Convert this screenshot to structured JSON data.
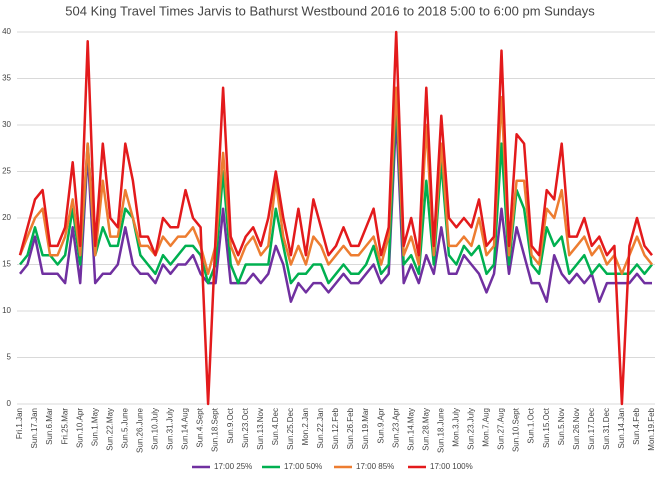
{
  "chart_data": {
    "type": "line",
    "title": "504 King Travel Times Jarvis to Bathurst Westbound 2016 to 2018 5:00 to 6:00 pm Sundays",
    "categories": [
      "Fri.1.Jan",
      null,
      "Sun.17.Jan",
      null,
      "Sun.6.Mar",
      null,
      "Fri.25.Mar",
      null,
      "Sun.10.Apr",
      null,
      "Sun.1.May",
      null,
      "Sun.22.May",
      null,
      "Sun.5.June",
      null,
      "Sun.26.June",
      null,
      "Sun.10.July",
      null,
      "Sun.31.July",
      null,
      "Sun.14.Aug",
      null,
      "Sun.4.Sept",
      null,
      "Sun.18.Sept",
      null,
      "Sun.9.Oct",
      null,
      "Sun.23.Oct",
      null,
      "Sun.13.Nov",
      null,
      "Sun.4.Dec",
      null,
      "Sun.25.Dec",
      null,
      "Mon.2.Jan",
      null,
      "Sun.22.Jan",
      null,
      "Sun.12.Feb",
      null,
      "Sun.26.Feb",
      null,
      "Sun.19.Mar",
      null,
      "Sun.9.Apr",
      null,
      "Sun.23.Apr",
      null,
      "Sun.14.May",
      null,
      "Sun.28.May",
      null,
      "Sun.18.June",
      null,
      "Mon.3.July",
      null,
      "Sun.23.July",
      null,
      "Mon.7.Aug",
      null,
      "Sun.27.Aug",
      null,
      "Sun.10.Sept",
      null,
      "Sun.1.Oct",
      null,
      "Sun.15.Oct",
      null,
      "Sun.5.Nov",
      null,
      "Sun.26.Nov",
      null,
      "Sun.17.Dec",
      null,
      "Sun.31.Dec",
      null,
      "Sun.14.Jan",
      null,
      "Sun.4.Feb",
      null,
      "Mon.19.Feb"
    ],
    "series": [
      {
        "name": "17:00 25%",
        "color": "#7030a0",
        "values": [
          14,
          15,
          18,
          14,
          14,
          14,
          13,
          19,
          13,
          27,
          13,
          14,
          14,
          15,
          19,
          15,
          14,
          14,
          13,
          15,
          14,
          15,
          15,
          16,
          14,
          13,
          13,
          21,
          13,
          13,
          13,
          14,
          13,
          14,
          17,
          15,
          11,
          13,
          12,
          13,
          13,
          12,
          13,
          14,
          13,
          13,
          14,
          15,
          13,
          14,
          31,
          13,
          15,
          13,
          16,
          14,
          19,
          14,
          14,
          16,
          15,
          14,
          12,
          14,
          21,
          14,
          19,
          16,
          13,
          13,
          11,
          16,
          14,
          13,
          14,
          13,
          14,
          11,
          13,
          13,
          13,
          13,
          14,
          13,
          13
        ]
      },
      {
        "name": "17:00 50%",
        "color": "#00b050",
        "values": [
          15,
          16,
          19,
          16,
          16,
          15,
          16,
          21,
          15,
          28,
          16,
          19,
          17,
          17,
          21,
          20,
          16,
          15,
          14,
          16,
          15,
          16,
          17,
          17,
          16,
          13,
          15,
          25,
          15,
          13,
          15,
          15,
          15,
          15,
          21,
          17,
          13,
          14,
          14,
          15,
          15,
          13,
          14,
          15,
          14,
          14,
          15,
          17,
          14,
          15,
          33,
          15,
          16,
          14,
          24,
          15,
          26,
          16,
          15,
          17,
          16,
          17,
          14,
          15,
          28,
          15,
          23,
          21,
          15,
          14,
          19,
          17,
          18,
          14,
          15,
          16,
          14,
          15,
          14,
          14,
          14,
          14,
          15,
          14,
          15
        ]
      },
      {
        "name": "17:00 85%",
        "color": "#ed7d31",
        "values": [
          16,
          18,
          20,
          21,
          16,
          16,
          18,
          22,
          16,
          28,
          16,
          24,
          18,
          18,
          23,
          20,
          17,
          17,
          16,
          18,
          17,
          18,
          18,
          19,
          17,
          14,
          17,
          27,
          17,
          15,
          17,
          18,
          16,
          17,
          24,
          18,
          15,
          17,
          15,
          18,
          17,
          15,
          16,
          17,
          16,
          16,
          17,
          18,
          15,
          18,
          34,
          16,
          18,
          15,
          30,
          16,
          28,
          17,
          17,
          18,
          17,
          20,
          16,
          17,
          33,
          16,
          24,
          24,
          16,
          15,
          21,
          20,
          23,
          16,
          17,
          18,
          16,
          17,
          15,
          16,
          14,
          16,
          18,
          16,
          15
        ]
      },
      {
        "name": "17:00 100%",
        "color": "#e31a1c",
        "values": [
          16,
          19,
          22,
          23,
          17,
          17,
          19,
          26,
          17,
          39,
          17,
          28,
          20,
          19,
          28,
          24,
          18,
          18,
          16,
          20,
          19,
          19,
          23,
          20,
          19,
          0,
          18,
          34,
          18,
          16,
          18,
          19,
          17,
          20,
          25,
          20,
          16,
          21,
          16,
          22,
          19,
          16,
          17,
          19,
          17,
          17,
          19,
          21,
          16,
          19,
          40,
          17,
          20,
          16,
          34,
          17,
          31,
          20,
          19,
          20,
          19,
          22,
          17,
          18,
          38,
          17,
          29,
          28,
          17,
          16,
          23,
          22,
          28,
          18,
          18,
          20,
          17,
          18,
          16,
          17,
          0,
          17,
          20,
          17,
          16
        ]
      }
    ],
    "ylim": [
      0,
      40
    ],
    "yticks": [
      0,
      5,
      10,
      15,
      20,
      25,
      30,
      35,
      40
    ],
    "grid": true,
    "legend": "bottom"
  }
}
